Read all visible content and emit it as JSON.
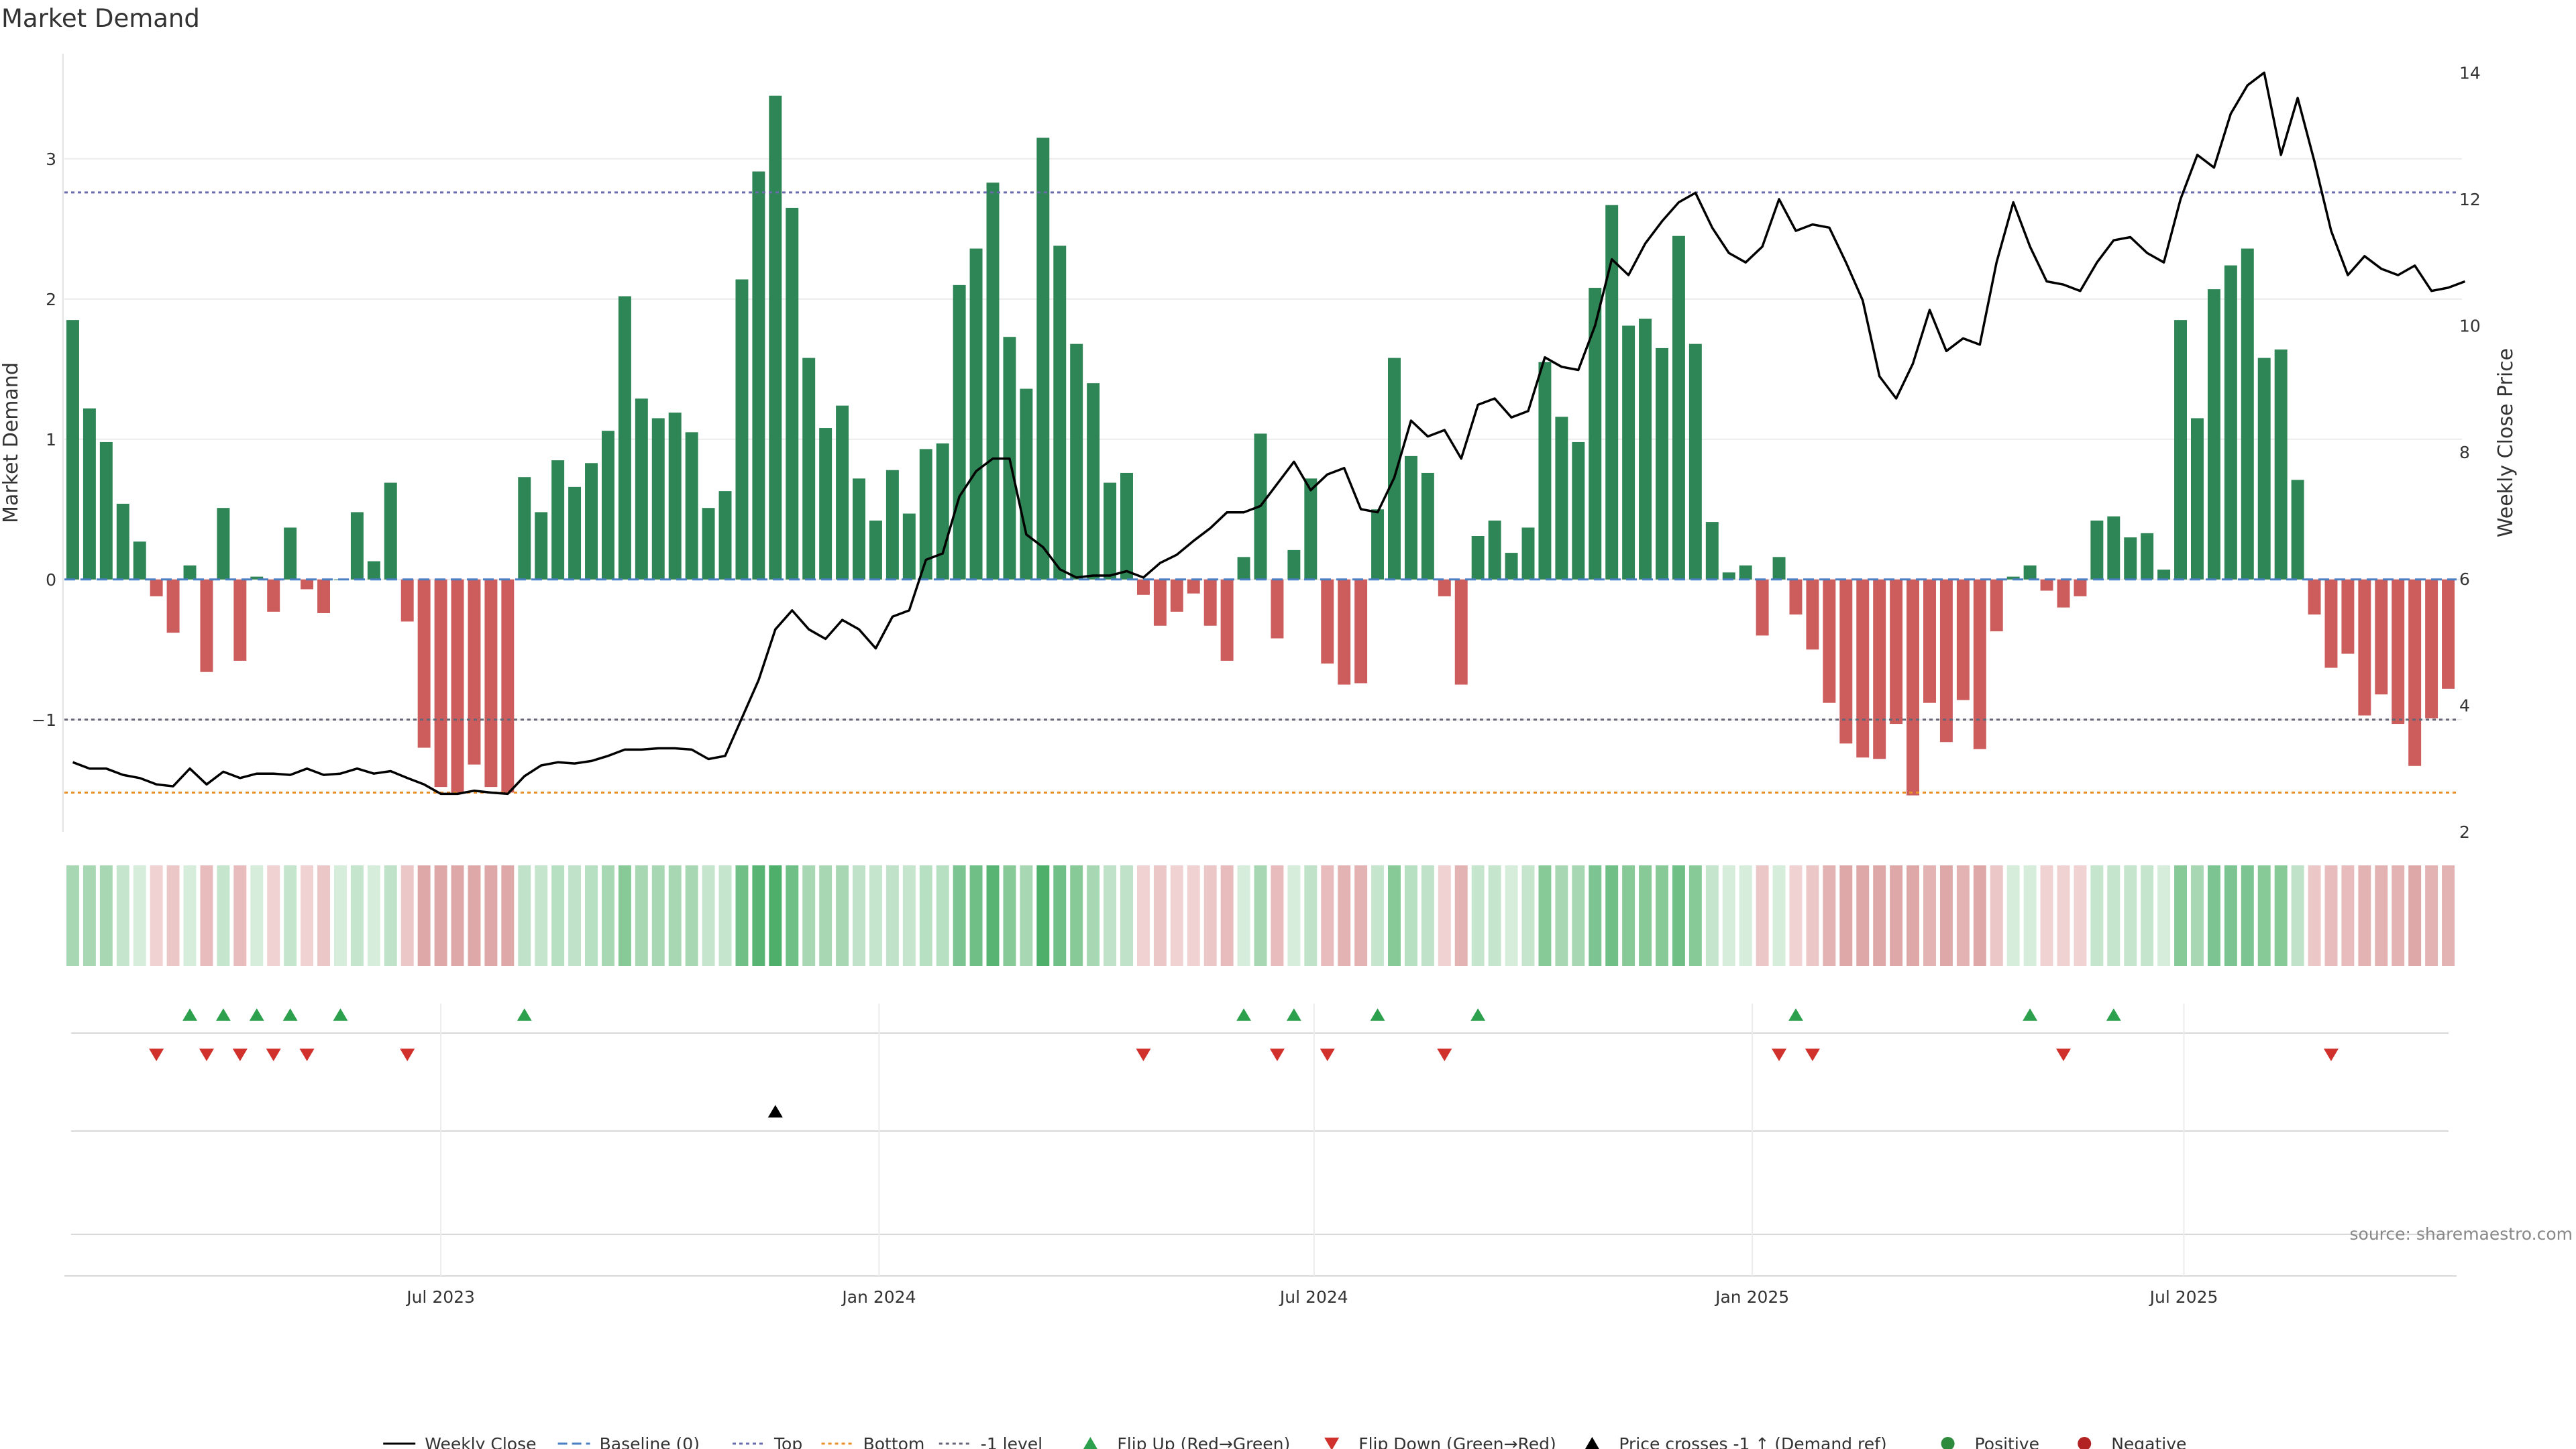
{
  "chart_data": {
    "type": "bar",
    "title": "Market Demand",
    "ylabel_left": "Market Demand",
    "ylabel_right": "Weekly Close Price",
    "ylim_left": [
      -1.8,
      3.75
    ],
    "ylim_right": [
      2,
      14.3
    ],
    "yticks_left": [
      {
        "value": 3,
        "label": "3"
      },
      {
        "value": 2,
        "label": "2"
      },
      {
        "value": 1,
        "label": "1"
      },
      {
        "value": 0,
        "label": "0"
      },
      {
        "value": -1,
        "label": "−1"
      }
    ],
    "yticks_right": [
      {
        "value": 14,
        "label": "14"
      },
      {
        "value": 12,
        "label": "12"
      },
      {
        "value": 10,
        "label": "10"
      },
      {
        "value": 8,
        "label": "8"
      },
      {
        "value": 6,
        "label": "6"
      },
      {
        "value": 4,
        "label": "4"
      },
      {
        "value": 2,
        "label": "2"
      }
    ],
    "xticks": [
      {
        "index": 22,
        "label": "Jul 2023"
      },
      {
        "index": 48.2,
        "label": "Jan 2024"
      },
      {
        "index": 74.2,
        "label": "Jul 2024"
      },
      {
        "index": 100.4,
        "label": "Jan 2025"
      },
      {
        "index": 126.2,
        "label": "Jul 2025"
      }
    ],
    "reference_lines": {
      "top": 2.76,
      "bottom": -1.52,
      "minus_one": -1.0,
      "baseline": 0
    },
    "demand": [
      1.85,
      1.22,
      0.98,
      0.54,
      0.27,
      -0.12,
      -0.38,
      0.1,
      -0.66,
      0.51,
      -0.58,
      0.02,
      -0.23,
      0.37,
      -0.07,
      -0.24,
      0,
      0.48,
      0.13,
      0.69,
      -0.3,
      -1.2,
      -1.48,
      -1.52,
      -1.32,
      -1.48,
      -1.52,
      0.73,
      0.48,
      0.85,
      0.66,
      0.83,
      1.06,
      2.02,
      1.29,
      1.15,
      1.19,
      1.05,
      0.51,
      0.63,
      2.14,
      2.91,
      3.45,
      2.65,
      1.58,
      1.08,
      1.24,
      0.72,
      0.42,
      0.78,
      0.47,
      0.93,
      0.97,
      2.1,
      2.36,
      2.83,
      1.73,
      1.36,
      3.15,
      2.38,
      1.68,
      1.4,
      0.69,
      0.76,
      -0.11,
      -0.33,
      -0.23,
      -0.1,
      -0.33,
      -0.58,
      0.16,
      1.04,
      -0.42,
      0.21,
      0.72,
      -0.6,
      -0.75,
      -0.74,
      0.5,
      1.58,
      0.88,
      0.76,
      -0.12,
      -0.75,
      0.31,
      0.42,
      0.19,
      0.37,
      1.55,
      1.16,
      0.98,
      2.08,
      2.67,
      1.81,
      1.86,
      1.65,
      2.45,
      1.68,
      0.41,
      0.05,
      0.1,
      -0.4,
      0.16,
      -0.25,
      -0.5,
      -0.88,
      -1.17,
      -1.27,
      -1.28,
      -1.03,
      -1.54,
      -0.88,
      -1.16,
      -0.86,
      -1.21,
      -0.37,
      0.02,
      0.1,
      -0.08,
      -0.2,
      -0.12,
      0.42,
      0.45,
      0.3,
      0.33,
      0.07,
      1.85,
      1.15,
      2.07,
      2.24,
      2.36,
      1.58,
      1.64,
      0.71,
      -0.25,
      -0.63,
      -0.53,
      -0.97,
      -0.82,
      -1.03,
      -1.33,
      -0.99,
      -0.78
    ],
    "weekly_close": [
      3.1,
      3.0,
      3.0,
      2.9,
      2.85,
      2.75,
      2.72,
      3.0,
      2.75,
      2.95,
      2.85,
      2.92,
      2.92,
      2.9,
      3.0,
      2.9,
      2.92,
      3.0,
      2.92,
      2.96,
      2.85,
      2.75,
      2.6,
      2.6,
      2.65,
      2.62,
      2.6,
      2.88,
      3.05,
      3.1,
      3.08,
      3.12,
      3.2,
      3.3,
      3.3,
      3.32,
      3.32,
      3.3,
      3.15,
      3.2,
      3.8,
      4.4,
      5.2,
      5.5,
      5.2,
      5.05,
      5.35,
      5.2,
      4.9,
      5.4,
      5.5,
      6.3,
      6.4,
      7.3,
      7.7,
      7.9,
      7.9,
      6.7,
      6.5,
      6.15,
      6.02,
      6.05,
      6.05,
      6.12,
      6.02,
      6.25,
      6.38,
      6.6,
      6.8,
      7.05,
      7.05,
      7.15,
      7.5,
      7.85,
      7.4,
      7.65,
      7.75,
      7.1,
      7.05,
      7.6,
      8.5,
      8.25,
      8.35,
      7.9,
      8.75,
      8.85,
      8.55,
      8.65,
      9.5,
      9.35,
      9.3,
      10.0,
      11.05,
      10.8,
      11.3,
      11.65,
      11.95,
      12.1,
      11.55,
      11.15,
      11.0,
      11.25,
      12.0,
      11.5,
      11.6,
      11.55,
      11.0,
      10.4,
      9.2,
      8.85,
      9.4,
      10.25,
      9.6,
      9.8,
      9.7,
      11.0,
      11.95,
      11.25,
      10.7,
      10.65,
      10.55,
      11.0,
      11.35,
      11.4,
      11.15,
      11.0,
      12.0,
      12.7,
      12.5,
      13.35,
      13.8,
      14.0,
      12.7,
      13.6,
      12.6,
      11.5,
      10.8,
      11.1,
      10.9,
      10.8,
      10.95,
      10.55,
      10.6,
      10.7
    ],
    "strip_colors": [
      "#a8d8b3",
      "#a8d8b3",
      "#a8d8b3",
      "#c5e5cd",
      "#d6eddc",
      "#f0d2d2",
      "#ecc7c7",
      "#d6eddc",
      "#e8bcbc",
      "#c5e5cd",
      "#e8bcbc",
      "#d6eddc",
      "#f0d2d2",
      "#c5e5cd",
      "#f0d2d2",
      "#ecc7c7",
      "#d6eddc",
      "#c5e5cd",
      "#d6eddc",
      "#bfe2c8",
      "#ecc7c7",
      "#dea8a8",
      "#dea8a8",
      "#dea8a8",
      "#dea8a8",
      "#dea8a8",
      "#dea8a8",
      "#bfe2c8",
      "#c5e5cd",
      "#b7dfc2",
      "#bfe2c8",
      "#b7dfc2",
      "#a8d8b3",
      "#88c998",
      "#a8d8b3",
      "#a8d8b3",
      "#a8d8b3",
      "#a8d8b3",
      "#c5e5cd",
      "#c5e5cd",
      "#6fbf86",
      "#58b473",
      "#4daf6a",
      "#6fbf86",
      "#a8d8b3",
      "#a8d8b3",
      "#a8d8b3",
      "#bfe2c8",
      "#c5e5cd",
      "#bfe2c8",
      "#c5e5cd",
      "#b7dfc2",
      "#b7dfc2",
      "#7cc492",
      "#6fbf86",
      "#58b473",
      "#88c998",
      "#a8d8b3",
      "#4daf6a",
      "#6fbf86",
      "#88c998",
      "#a8d8b3",
      "#bfe2c8",
      "#bfe2c8",
      "#f0d2d2",
      "#ecc7c7",
      "#f0d2d2",
      "#f0d2d2",
      "#ecc7c7",
      "#e8bcbc",
      "#d6eddc",
      "#a8d8b3",
      "#e8bcbc",
      "#d6eddc",
      "#bfe2c8",
      "#e8bcbc",
      "#e3b2b2",
      "#e3b2b2",
      "#c5e5cd",
      "#88c998",
      "#b7dfc2",
      "#bfe2c8",
      "#f0d2d2",
      "#e3b2b2",
      "#c5e5cd",
      "#c5e5cd",
      "#d6eddc",
      "#c5e5cd",
      "#88c998",
      "#a8d8b3",
      "#a8d8b3",
      "#7cc492",
      "#6fbf86",
      "#88c998",
      "#88c998",
      "#88c998",
      "#6fbf86",
      "#88c998",
      "#c5e5cd",
      "#d6eddc",
      "#d6eddc",
      "#ecc7c7",
      "#d6eddc",
      "#f0d2d2",
      "#ecc7c7",
      "#e3b2b2",
      "#dea8a8",
      "#dea8a8",
      "#dea8a8",
      "#dea8a8",
      "#dea8a8",
      "#e3b2b2",
      "#dea8a8",
      "#e3b2b2",
      "#dea8a8",
      "#ecc7c7",
      "#d6eddc",
      "#d6eddc",
      "#f0d2d2",
      "#f0d2d2",
      "#f0d2d2",
      "#c5e5cd",
      "#c5e5cd",
      "#c5e5cd",
      "#c5e5cd",
      "#d6eddc",
      "#88c998",
      "#a8d8b3",
      "#7cc492",
      "#7cc492",
      "#7cc492",
      "#88c998",
      "#88c998",
      "#bfe2c8",
      "#ecc7c7",
      "#e8bcbc",
      "#e8bcbc",
      "#e3b2b2",
      "#e3b2b2",
      "#e3b2b2",
      "#dea8a8",
      "#e3b2b2",
      "#e3b2b2"
    ],
    "flip_up_indices": [
      7,
      9,
      11,
      13,
      16,
      27,
      70,
      73,
      78,
      84,
      103,
      117,
      122
    ],
    "flip_down_indices": [
      5,
      8,
      10,
      12,
      14,
      20,
      64,
      72,
      75,
      82,
      102,
      104,
      119,
      135
    ],
    "price_cross_indices": [
      42
    ],
    "legend": [
      {
        "label": "Weekly Close",
        "kind": "line-solid",
        "color": "#000000"
      },
      {
        "label": "Baseline (0)",
        "kind": "line-dashed",
        "color": "#4a7fc1"
      },
      {
        "label": "Top",
        "kind": "line-dotted",
        "color": "#6b6bb0"
      },
      {
        "label": "Bottom",
        "kind": "line-dotted",
        "color": "#e8902a"
      },
      {
        "label": "-1 level",
        "kind": "line-dotted",
        "color": "#666677"
      },
      {
        "label": "Flip Up (Red→Green)",
        "kind": "tri-up",
        "color": "#2ca04c"
      },
      {
        "label": "Flip Down (Green→Red)",
        "kind": "tri-down",
        "color": "#d0312d"
      },
      {
        "label": "Price crosses -1 ↑ (Demand ref)",
        "kind": "tri-up",
        "color": "#000000"
      },
      {
        "label": "Positive",
        "kind": "dot",
        "color": "#2e8b3e"
      },
      {
        "label": "Negative",
        "kind": "dot",
        "color": "#b22222"
      }
    ],
    "colors": {
      "positive_bar": "#2e8555",
      "negative_bar": "#cd5c5c",
      "price_line": "#000000",
      "flip_up": "#2ca04c",
      "flip_down": "#d0312d"
    },
    "source": "source: sharemaestro.com"
  }
}
